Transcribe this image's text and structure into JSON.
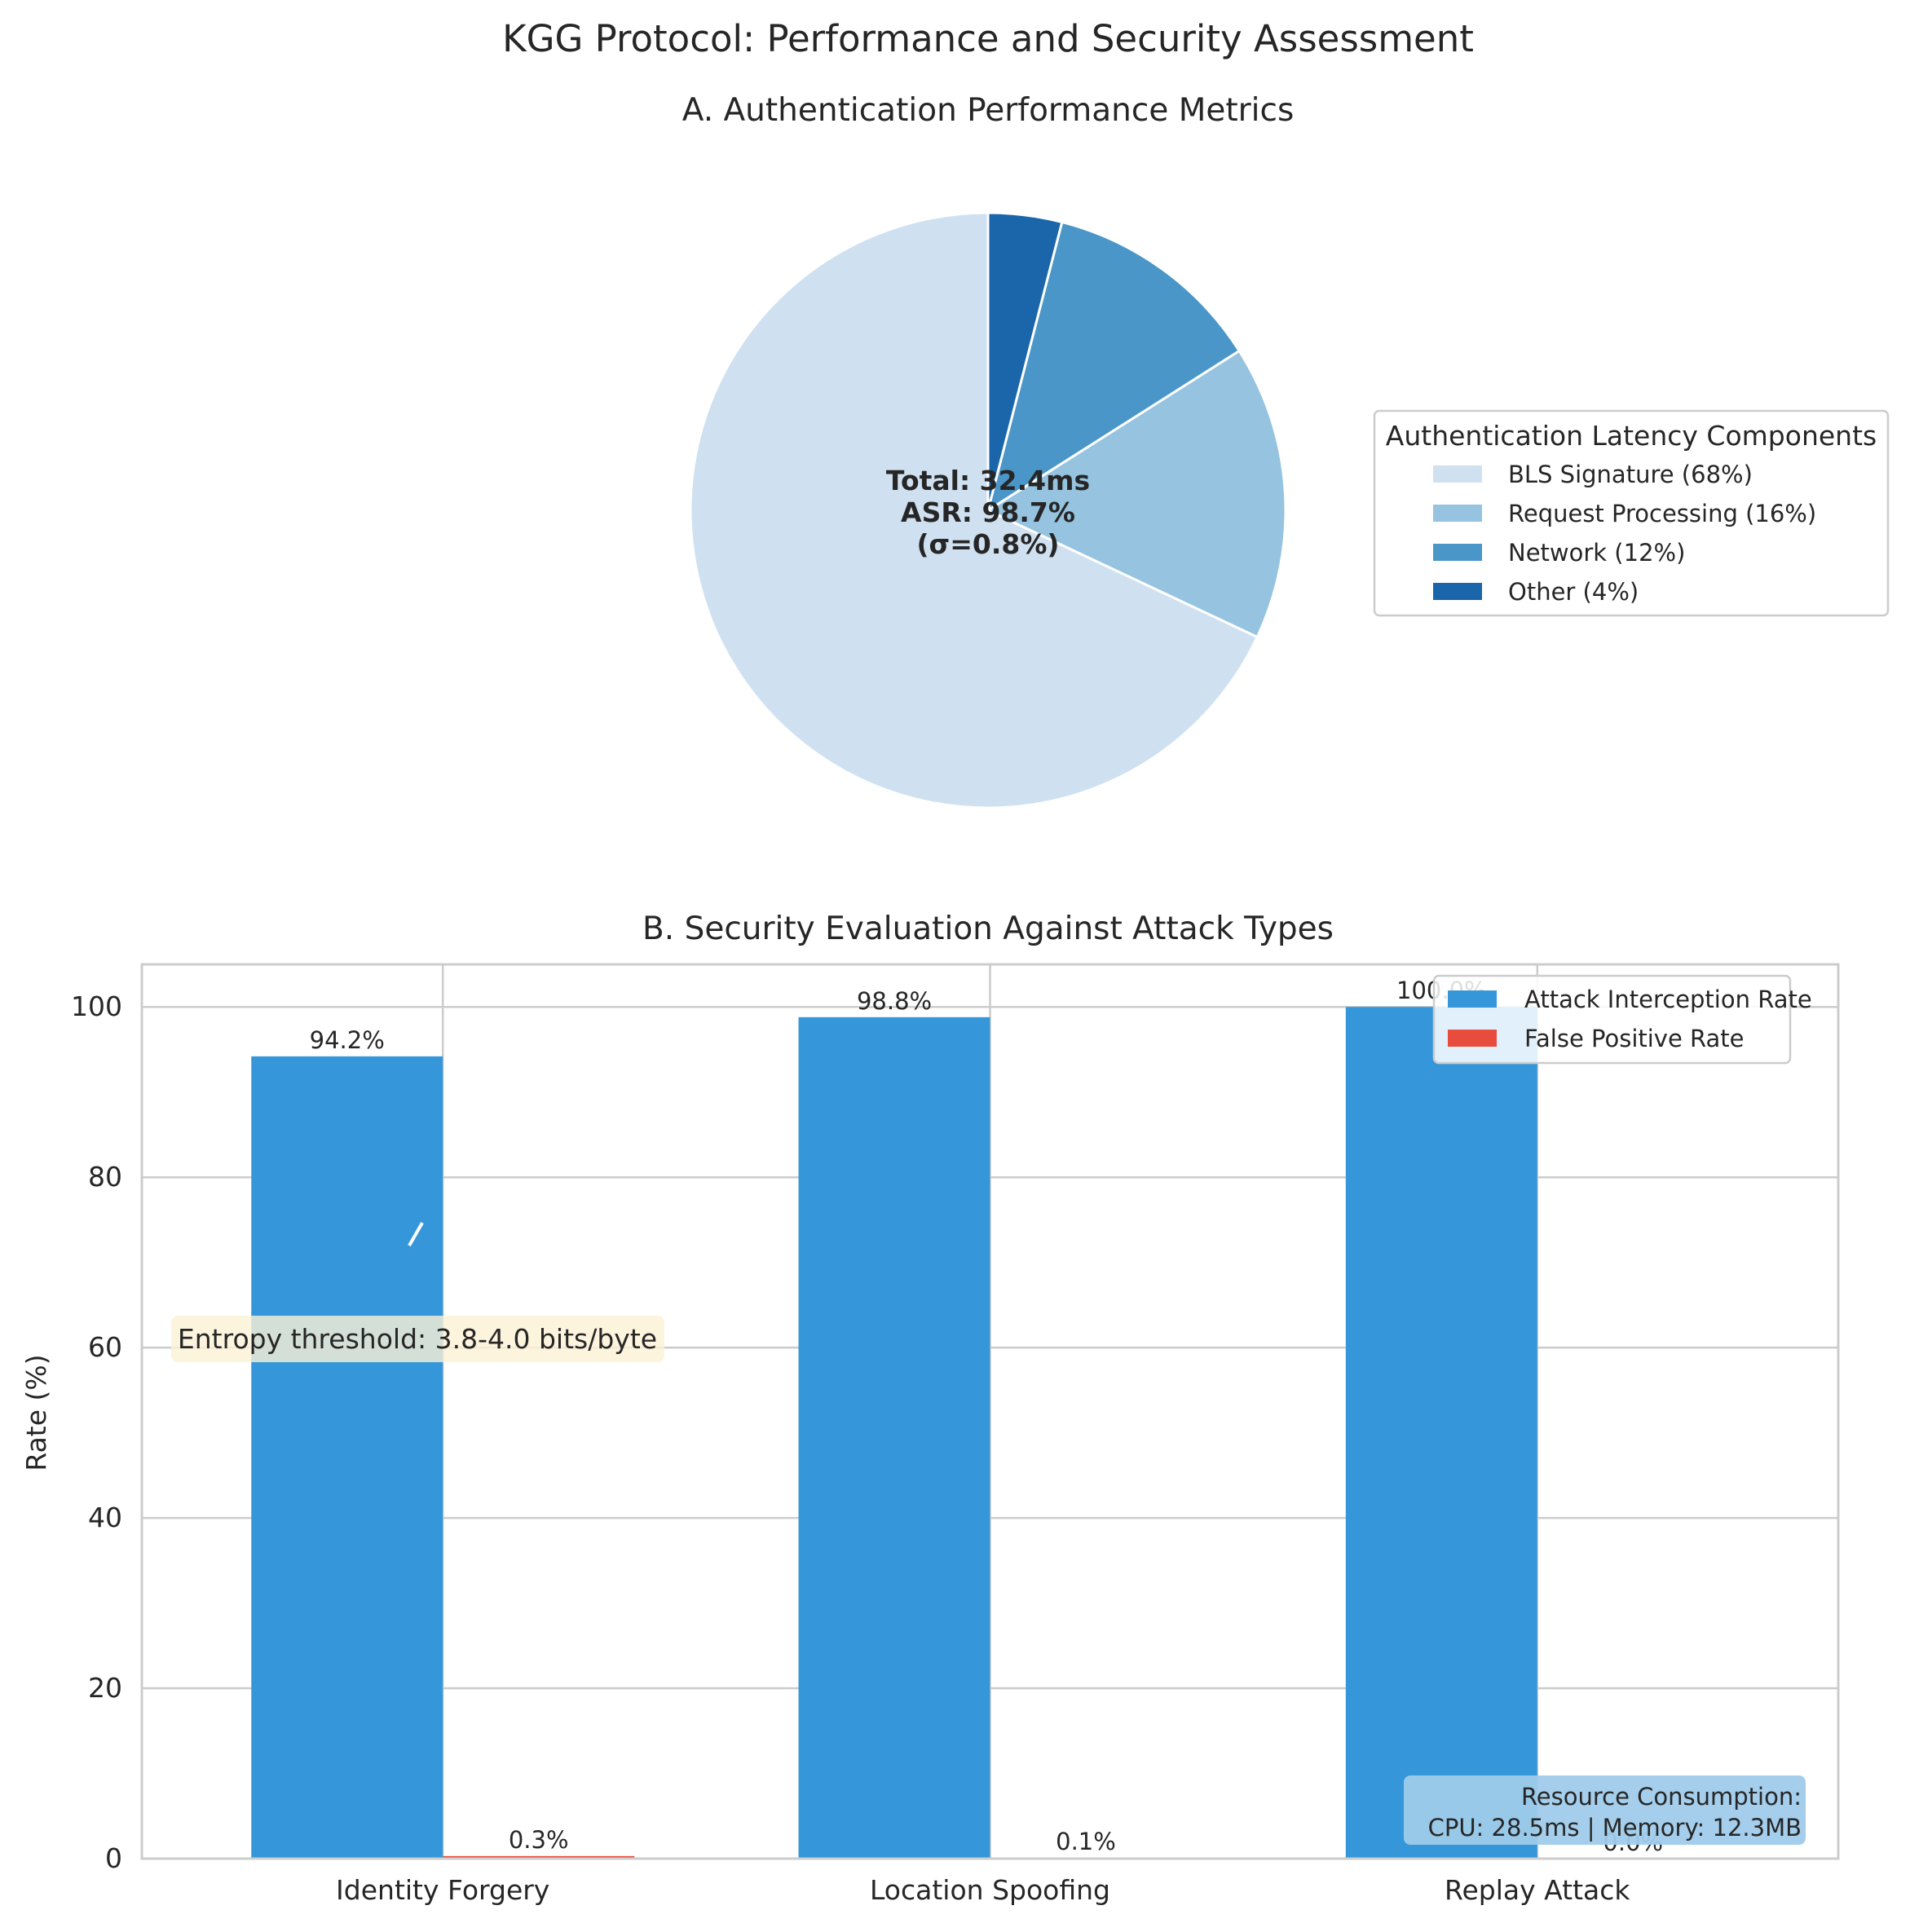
{
  "figure": {
    "suptitle": "KGG Protocol: Performance and Security Assessment"
  },
  "colors": {
    "pie": [
      "#cfe1f0",
      "#95c3e0",
      "#4a96c9",
      "#1b65ab"
    ],
    "interception": "#3597d9",
    "false_positive": "#e74c3c",
    "grid": "#cccccc",
    "annotation_box": "#fdf1d6",
    "resource_box": "#9fcbea",
    "center_text": "#262626"
  },
  "chart_data": [
    {
      "type": "pie",
      "title": "A. Authentication Performance Metrics",
      "labels": [
        "BLS Signature",
        "Request Processing",
        "Network",
        "Other"
      ],
      "values": [
        68,
        16,
        12,
        4
      ],
      "start_angle_deg": 90,
      "direction": "counterclockwise",
      "legend": {
        "title": "Authentication Latency Components",
        "entries": [
          "BLS Signature (68%)",
          "Request Processing (16%)",
          "Network (12%)",
          "Other (4%)"
        ],
        "placement": "right"
      },
      "center_text": [
        "Total: 32.4ms",
        "ASR: 98.7%",
        "(σ=0.8%)"
      ]
    },
    {
      "type": "bar",
      "title": "B. Security Evaluation Against Attack Types",
      "categories": [
        "Identity Forgery",
        "Location Spoofing",
        "Replay Attack"
      ],
      "series": [
        {
          "name": "Attack Interception Rate",
          "values": [
            94.2,
            98.8,
            100.0
          ],
          "labels": [
            "94.2%",
            "98.8%",
            "100.0%"
          ]
        },
        {
          "name": "False Positive Rate",
          "values": [
            0.3,
            0.1,
            0.0
          ],
          "labels": [
            "0.3%",
            "0.1%",
            "0.0%"
          ]
        }
      ],
      "ylabel": "Rate (%)",
      "xlabel": "",
      "ylim": [
        0,
        105
      ],
      "yticks": [
        0,
        20,
        40,
        60,
        80,
        100
      ],
      "grid": true,
      "legend_placement": "top-right",
      "annotations": {
        "entropy": "Entropy threshold: 3.8-4.0 bits/byte",
        "resource": [
          "Resource Consumption:",
          "CPU: 28.5ms | Memory: 12.3MB"
        ]
      }
    }
  ]
}
